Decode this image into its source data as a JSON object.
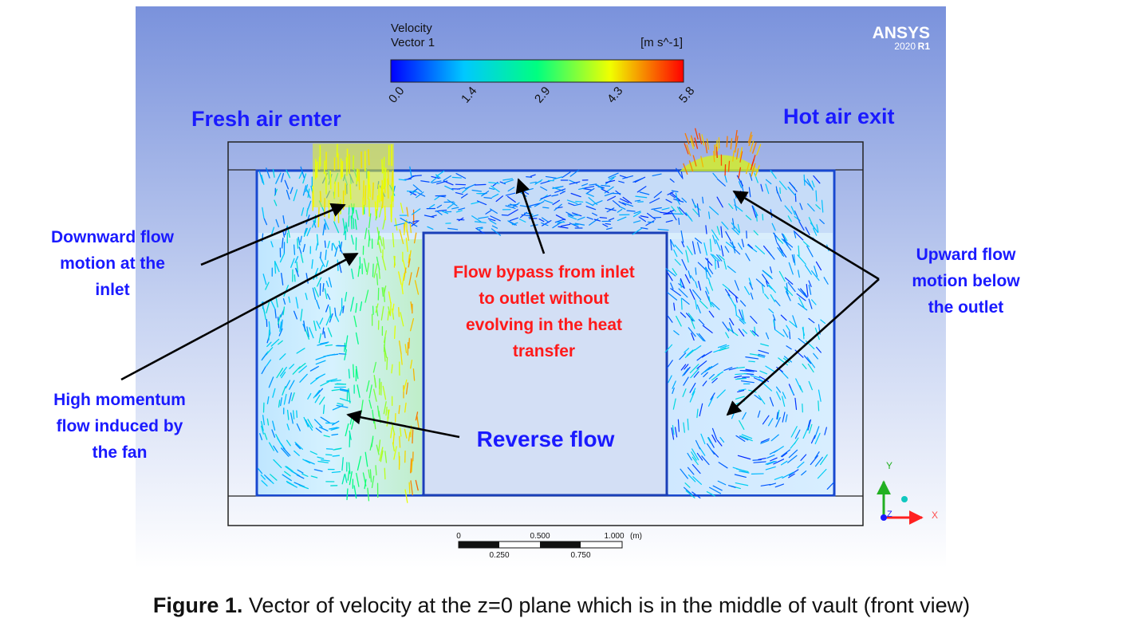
{
  "legend": {
    "title1": "Velocity",
    "title2": "Vector 1",
    "unit": "[m s^-1]",
    "ticks": [
      "0.0",
      "1.4",
      "2.9",
      "4.3",
      "5.8"
    ]
  },
  "brand": {
    "name": "ANSYS",
    "version": "2020",
    "release": "R1"
  },
  "scale": {
    "top_labels": [
      "0",
      "0.500",
      "1.000"
    ],
    "unit": "(m)",
    "bottom_labels": [
      "0.250",
      "0.750"
    ]
  },
  "axes": {
    "y": "Y",
    "x": "X",
    "z": "Z"
  },
  "headings": {
    "left": "Fresh air enter",
    "right": "Hot air exit"
  },
  "annotations": {
    "downward": [
      "Downward flow",
      "motion at the",
      "inlet"
    ],
    "bypass": [
      "Flow bypass from inlet",
      "to outlet without",
      "evolving in the heat",
      "transfer"
    ],
    "upward": [
      "Upward flow",
      "motion below",
      "the outlet"
    ],
    "high_momentum": [
      "High momentum",
      "flow induced by",
      "the fan"
    ],
    "reverse": "Reverse flow"
  },
  "caption": {
    "bold": "Figure 1.",
    "text": " Vector of velocity at the z=0 plane which is in the middle of vault (front view)"
  },
  "colors": {
    "annotation_blue": "#1a1aff",
    "annotation_red": "#ff1a1a",
    "background_top": "#7a92dc",
    "background_bottom": "#ffffff"
  }
}
